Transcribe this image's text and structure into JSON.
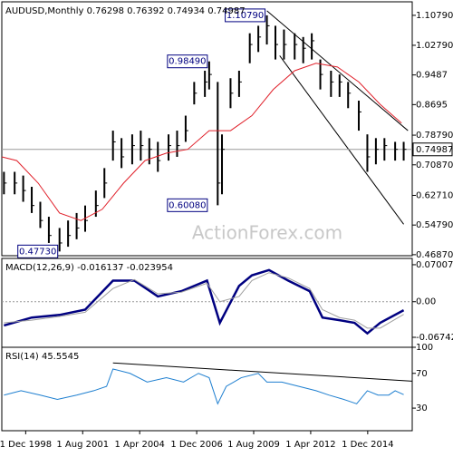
{
  "chart_data": [
    {
      "type": "ohlc",
      "title": "AUDUSD,Monthly 0.76298 0.76392 0.74934 0.74987",
      "watermark": "ActionForex.com",
      "color": "#000000",
      "xlim": [
        1997.8,
        2017.0
      ],
      "ylim": [
        0.466,
        1.144
      ],
      "x": [
        1997.9,
        1998.4,
        1998.8,
        1999.2,
        1999.6,
        2000.0,
        2000.5,
        2000.9,
        2001.3,
        2001.7,
        2002.2,
        2002.6,
        2003.0,
        2003.4,
        2003.9,
        2004.3,
        2004.7,
        2005.1,
        2005.6,
        2006.0,
        2006.4,
        2006.8,
        2007.3,
        2007.5,
        2007.9,
        2008.1,
        2008.5,
        2008.9,
        2009.4,
        2009.8,
        2010.2,
        2010.6,
        2011.0,
        2011.5,
        2011.9,
        2012.3,
        2012.7,
        2013.2,
        2013.6,
        2014.0,
        2014.5,
        2014.9,
        2015.3,
        2015.7,
        2016.2,
        2016.6
      ],
      "high": [
        0.69,
        0.69,
        0.68,
        0.65,
        0.61,
        0.57,
        0.54,
        0.56,
        0.58,
        0.6,
        0.64,
        0.7,
        0.8,
        0.78,
        0.79,
        0.8,
        0.78,
        0.77,
        0.79,
        0.8,
        0.84,
        0.93,
        0.96,
        0.9849,
        0.93,
        0.79,
        0.94,
        0.96,
        1.06,
        1.08,
        1.1079,
        1.08,
        1.07,
        1.06,
        1.05,
        1.06,
        0.99,
        0.96,
        0.95,
        0.93,
        0.88,
        0.79,
        0.78,
        0.78,
        0.77,
        0.77
      ],
      "low": [
        0.63,
        0.63,
        0.61,
        0.58,
        0.54,
        0.5,
        0.4773,
        0.49,
        0.51,
        0.53,
        0.57,
        0.62,
        0.72,
        0.7,
        0.71,
        0.72,
        0.71,
        0.69,
        0.72,
        0.73,
        0.77,
        0.87,
        0.89,
        0.91,
        0.6008,
        0.63,
        0.86,
        0.89,
        0.98,
        1.01,
        1.03,
        0.99,
        0.99,
        0.99,
        0.98,
        0.99,
        0.91,
        0.89,
        0.89,
        0.86,
        0.8,
        0.69,
        0.71,
        0.72,
        0.72,
        0.72
      ],
      "close": [
        0.66,
        0.66,
        0.64,
        0.6,
        0.56,
        0.52,
        0.5,
        0.52,
        0.54,
        0.56,
        0.6,
        0.66,
        0.77,
        0.73,
        0.76,
        0.76,
        0.75,
        0.72,
        0.76,
        0.76,
        0.8,
        0.9,
        0.93,
        0.95,
        0.66,
        0.75,
        0.9,
        0.93,
        1.03,
        1.05,
        1.08,
        1.03,
        1.03,
        1.03,
        1.02,
        1.04,
        0.95,
        0.93,
        0.93,
        0.9,
        0.85,
        0.73,
        0.75,
        0.76,
        0.75,
        0.75
      ],
      "moving_average": {
        "color": "#e0202a",
        "x": [
          1997.8,
          1998.5,
          1999.5,
          2000.5,
          2001.5,
          2002.5,
          2003.5,
          2004.5,
          2005.5,
          2006.5,
          2007.5,
          2008.5,
          2009.5,
          2010.5,
          2011.5,
          2012.5,
          2013.5,
          2014.5,
          2015.5,
          2016.5
        ],
        "values": [
          0.73,
          0.72,
          0.66,
          0.58,
          0.56,
          0.59,
          0.66,
          0.72,
          0.74,
          0.75,
          0.8,
          0.8,
          0.84,
          0.91,
          0.96,
          0.98,
          0.97,
          0.93,
          0.87,
          0.82
        ]
      },
      "current_price": 0.74987,
      "trendlines": [
        {
          "x": [
            2010.2,
            2016.8
          ],
          "values": [
            1.12,
            0.8
          ]
        },
        {
          "x": [
            2010.8,
            2016.6
          ],
          "values": [
            1.0,
            0.55
          ]
        }
      ],
      "annotations": [
        {
          "x": 2010.2,
          "value": {
            "value": 1.1079,
            "label": "1.10790"
          }
        },
        {
          "x": 2007.5,
          "value": {
            "value": 0.9849,
            "label": "0.98490"
          }
        },
        {
          "x": 2007.5,
          "value": {
            "value": 0.6008,
            "label": "0.60080"
          }
        },
        {
          "x": 2000.5,
          "value": {
            "value": 0.4773,
            "label": "0.47730"
          }
        }
      ],
      "yticks": [
        {
          "value": 1.1079,
          "label": "1.10790"
        },
        {
          "value": 1.0279,
          "label": "1.02790"
        },
        0.9487,
        0.8695,
        {
          "value": 0.7879,
          "label": "0.78790"
        },
        {
          "value": 0.7087,
          "label": "0.70870"
        },
        {
          "value": 0.6271,
          "label": "0.62710"
        },
        {
          "value": 0.5479,
          "label": "0.54790"
        },
        {
          "value": 0.4687,
          "label": "0.46870"
        }
      ]
    },
    {
      "type": "line",
      "title": "MACD(12,26,9) -0.016137 -0.023954",
      "xlim": [
        1997.8,
        2017.0
      ],
      "ylim": [
        -0.0863,
        0.082
      ],
      "yticks": [
        0.070071,
        {
          "value": 0,
          "label": "0.00"
        },
        -0.067423
      ],
      "zero_line": 0,
      "series": [
        {
          "color": "#000080",
          "width": 2.5,
          "x": [
            1997.9,
            1999.2,
            2000.5,
            2001.7,
            2003.0,
            2004.0,
            2005.1,
            2006.2,
            2007.4,
            2008.0,
            2008.9,
            2009.5,
            2010.3,
            2011.2,
            2012.2,
            2012.8,
            2013.6,
            2014.3,
            2014.9,
            2015.5,
            2016.6
          ],
          "values": [
            -0.045,
            -0.03,
            -0.025,
            -0.015,
            0.04,
            0.04,
            0.01,
            0.02,
            0.04,
            -0.04,
            0.03,
            0.05,
            0.06,
            0.04,
            0.02,
            -0.03,
            -0.035,
            -0.04,
            -0.06,
            -0.04,
            -0.016137
          ]
        },
        {
          "color": "#a0a0a0",
          "width": 1,
          "x": [
            1997.9,
            1999.2,
            2000.5,
            2001.7,
            2003.0,
            2004.0,
            2005.1,
            2006.2,
            2007.4,
            2008.0,
            2008.9,
            2009.5,
            2010.3,
            2011.2,
            2012.2,
            2012.8,
            2013.6,
            2014.3,
            2014.9,
            2015.5,
            2016.6
          ],
          "values": [
            -0.04,
            -0.035,
            -0.028,
            -0.02,
            0.025,
            0.042,
            0.015,
            0.018,
            0.035,
            0.0,
            0.01,
            0.04,
            0.055,
            0.045,
            0.025,
            -0.015,
            -0.03,
            -0.035,
            -0.05,
            -0.05,
            -0.023954
          ]
        }
      ]
    },
    {
      "type": "line",
      "title": "RSI(14) 45.5545",
      "xlim": [
        1997.8,
        2017.0
      ],
      "ylim": [
        4,
        100
      ],
      "yticks": [
        100,
        70,
        30
      ],
      "xticks": [
        {
          "value": 1998.917,
          "label": "1 Dec 1998"
        },
        {
          "value": 2001.583,
          "label": "1 Aug 2001"
        },
        {
          "value": 2004.25,
          "label": "1 Apr 2004"
        },
        {
          "value": 2006.917,
          "label": "1 Dec 2006"
        },
        {
          "value": 2009.583,
          "label": "1 Aug 2009"
        },
        {
          "value": 2012.25,
          "label": "1 Apr 2012"
        },
        {
          "value": 2014.917,
          "label": "1 Dec 2014"
        }
      ],
      "trendlines": [
        {
          "x": [
            2003.0,
            2017.0
          ],
          "values": [
            82,
            61
          ]
        }
      ],
      "series": [
        {
          "color": "#1e7fd0",
          "width": 1,
          "x": [
            1997.9,
            1998.7,
            1999.6,
            2000.4,
            2001.3,
            2002.1,
            2002.7,
            2003.0,
            2003.8,
            2004.6,
            2005.5,
            2006.3,
            2007.0,
            2007.5,
            2007.9,
            2008.3,
            2009.0,
            2009.8,
            2010.2,
            2010.9,
            2011.7,
            2012.5,
            2013.1,
            2013.8,
            2014.4,
            2014.9,
            2015.4,
            2015.9,
            2016.2,
            2016.6
          ],
          "values": [
            45,
            50,
            45,
            40,
            45,
            50,
            55,
            75,
            70,
            60,
            65,
            60,
            70,
            65,
            35,
            55,
            65,
            70,
            60,
            60,
            55,
            50,
            45,
            40,
            35,
            50,
            45,
            45,
            50,
            45.5545
          ]
        }
      ]
    }
  ]
}
